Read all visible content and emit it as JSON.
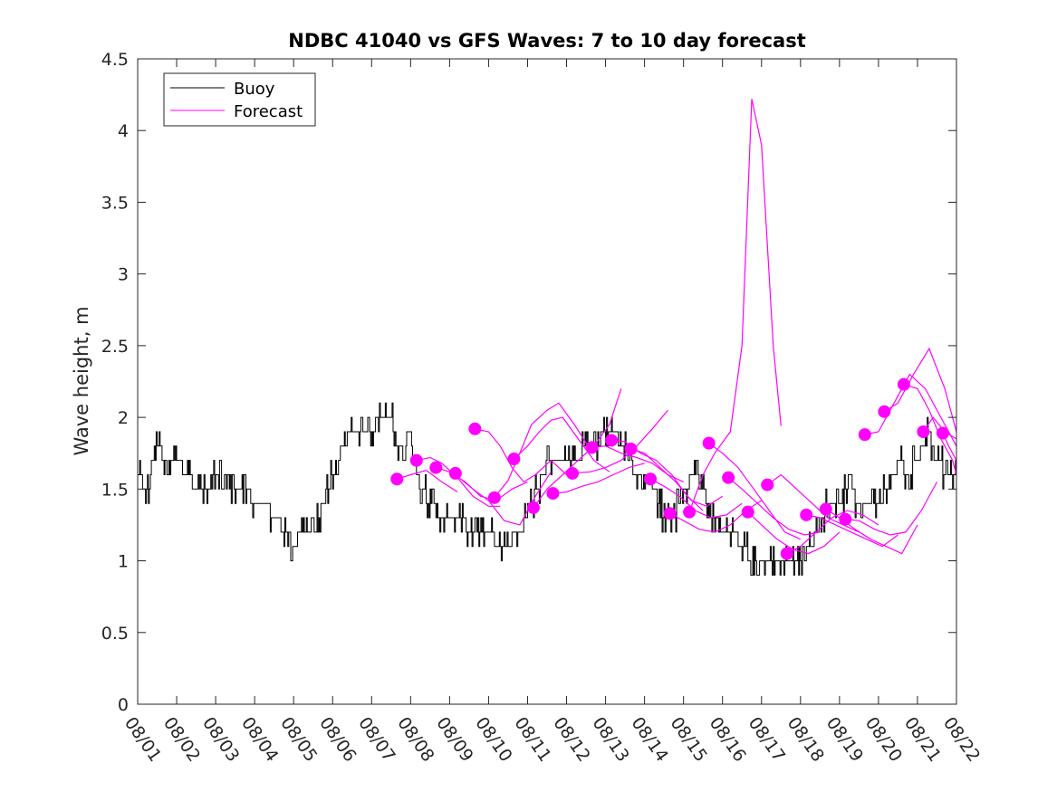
{
  "chart_data": {
    "type": "line",
    "title": "NDBC 41040 vs GFS Waves: 7 to 10 day forecast",
    "xlabel": "",
    "ylabel": "Wave height, m",
    "xlim": [
      0,
      21
    ],
    "ylim": [
      0,
      4.5
    ],
    "x_tick_labels": [
      "08/01",
      "08/02",
      "08/03",
      "08/04",
      "08/05",
      "08/06",
      "08/07",
      "08/08",
      "08/09",
      "08/10",
      "08/11",
      "08/12",
      "08/13",
      "08/14",
      "08/15",
      "08/16",
      "08/17",
      "08/18",
      "08/19",
      "08/20",
      "08/21",
      "08/22"
    ],
    "y_tick_labels": [
      "0",
      "0.5",
      "1",
      "1.5",
      "2",
      "2.5",
      "3",
      "3.5",
      "4",
      "4.5"
    ],
    "y_ticks": [
      0,
      0.5,
      1,
      1.5,
      2,
      2.5,
      3,
      3.5,
      4,
      4.5
    ],
    "legend": {
      "position": "top-left",
      "entries": [
        "Buoy",
        "Forecast"
      ]
    },
    "colors": {
      "buoy": "#000000",
      "forecast": "#ff00ff"
    },
    "series": [
      {
        "name": "Buoy",
        "x": [
          0.0,
          0.25,
          0.5,
          0.75,
          1.0,
          1.25,
          1.5,
          1.75,
          2.0,
          2.25,
          2.5,
          2.75,
          3.0,
          3.25,
          3.5,
          3.75,
          4.0,
          4.25,
          4.5,
          4.75,
          5.0,
          5.25,
          5.5,
          5.75,
          6.0,
          6.25,
          6.5,
          6.75,
          7.0,
          7.25,
          7.5,
          7.75,
          8.0,
          8.25,
          8.5,
          8.75,
          9.0,
          9.25,
          9.5,
          9.75,
          10.0,
          10.25,
          10.5,
          10.75,
          11.0,
          11.25,
          11.5,
          11.75,
          12.0,
          12.25,
          12.5,
          12.75,
          13.0,
          13.25,
          13.5,
          13.75,
          14.0,
          14.25,
          14.5,
          14.75,
          15.0,
          15.25,
          15.5,
          15.75,
          16.0,
          16.25,
          16.5,
          16.75,
          17.0,
          17.25,
          17.5,
          17.75,
          18.0,
          18.25,
          18.5,
          18.75,
          19.0,
          19.25,
          19.5,
          19.75,
          20.0,
          20.25,
          20.5,
          20.75,
          21.0
        ],
        "values": [
          1.6,
          1.5,
          1.8,
          1.7,
          1.7,
          1.6,
          1.5,
          1.5,
          1.6,
          1.5,
          1.5,
          1.5,
          1.4,
          1.4,
          1.3,
          1.2,
          1.1,
          1.2,
          1.2,
          1.4,
          1.6,
          1.8,
          1.9,
          1.9,
          1.9,
          2.0,
          2.0,
          1.7,
          1.8,
          1.5,
          1.4,
          1.3,
          1.3,
          1.3,
          1.2,
          1.2,
          1.2,
          1.1,
          1.1,
          1.2,
          1.3,
          1.5,
          1.7,
          1.7,
          1.7,
          1.7,
          1.8,
          1.8,
          1.9,
          1.9,
          1.8,
          1.6,
          1.6,
          1.5,
          1.3,
          1.3,
          1.5,
          1.6,
          1.5,
          1.3,
          1.2,
          1.2,
          1.1,
          1.0,
          1.0,
          1.0,
          1.0,
          1.0,
          1.0,
          1.1,
          1.3,
          1.4,
          1.4,
          1.5,
          1.4,
          1.4,
          1.4,
          1.5,
          1.7,
          1.6,
          1.7,
          1.9,
          1.7,
          1.6,
          1.6
        ]
      },
      {
        "name": "Forecast",
        "runs": [
          {
            "x": [
              6.65,
              7.0,
              7.4,
              7.8,
              8.2
            ],
            "values": [
              1.57,
              1.6,
              1.63,
              1.55,
              1.48
            ]
          },
          {
            "x": [
              7.15,
              7.5,
              7.8,
              8.2,
              8.6,
              9.0,
              9.3
            ],
            "values": [
              1.7,
              1.72,
              1.68,
              1.58,
              1.45,
              1.38,
              1.38
            ]
          },
          {
            "x": [
              7.65,
              8.0,
              8.4,
              8.8,
              9.2,
              9.6,
              10.0
            ],
            "values": [
              1.65,
              1.62,
              1.55,
              1.45,
              1.42,
              1.5,
              1.55
            ]
          },
          {
            "x": [
              8.15,
              8.6,
              9.0,
              9.4,
              9.8,
              10.2,
              10.6
            ],
            "values": [
              1.6,
              1.5,
              1.42,
              1.28,
              1.25,
              1.45,
              1.62
            ]
          },
          {
            "x": [
              8.65,
              9.0,
              9.3,
              9.6,
              9.9,
              10.2,
              10.6,
              11.0
            ],
            "values": [
              1.92,
              1.9,
              1.8,
              1.65,
              1.55,
              1.6,
              1.7,
              1.6
            ]
          },
          {
            "x": [
              9.15,
              9.5,
              9.8,
              10.1,
              10.5,
              10.8,
              11.2,
              11.6
            ],
            "values": [
              1.44,
              1.56,
              1.75,
              1.95,
              2.05,
              2.1,
              1.95,
              1.78
            ]
          },
          {
            "x": [
              9.65,
              10.0,
              10.3,
              10.6,
              10.9,
              11.3,
              11.7,
              12.1
            ],
            "values": [
              1.71,
              1.8,
              1.9,
              1.98,
              2.0,
              1.85,
              1.7,
              1.62
            ]
          },
          {
            "x": [
              10.15,
              10.5,
              10.9,
              11.3,
              11.7,
              12.1,
              12.4
            ],
            "values": [
              1.37,
              1.5,
              1.6,
              1.7,
              1.8,
              1.95,
              2.2
            ]
          },
          {
            "x": [
              10.65,
              11.0,
              11.4,
              11.8,
              12.2,
              12.6,
              13.0
            ],
            "values": [
              1.47,
              1.48,
              1.52,
              1.55,
              1.6,
              1.65,
              1.68
            ]
          },
          {
            "x": [
              11.15,
              11.6,
              12.0,
              12.4,
              12.8,
              13.2,
              13.6
            ],
            "values": [
              1.61,
              1.62,
              1.65,
              1.7,
              1.8,
              1.92,
              2.05
            ]
          },
          {
            "x": [
              11.65,
              12.0,
              12.4,
              12.8,
              13.2,
              13.6,
              14.0
            ],
            "values": [
              1.79,
              1.8,
              1.75,
              1.72,
              1.68,
              1.6,
              1.55
            ]
          },
          {
            "x": [
              12.15,
              12.5,
              12.9,
              13.3,
              13.7,
              14.1,
              14.5
            ],
            "values": [
              1.84,
              1.83,
              1.75,
              1.7,
              1.6,
              1.45,
              1.35
            ]
          },
          {
            "x": [
              12.65,
              13.0,
              13.4,
              13.8,
              14.2,
              14.6,
              15.0
            ],
            "values": [
              1.78,
              1.75,
              1.65,
              1.55,
              1.42,
              1.38,
              1.45
            ]
          },
          {
            "x": [
              13.15,
              13.5,
              13.9,
              14.3,
              14.7,
              15.1,
              15.5
            ],
            "values": [
              1.57,
              1.52,
              1.45,
              1.35,
              1.3,
              1.32,
              1.4
            ]
          },
          {
            "x": [
              13.65,
              14.0,
              14.4,
              14.8,
              15.2,
              15.6,
              16.0
            ],
            "values": [
              1.33,
              1.28,
              1.22,
              1.2,
              1.25,
              1.35,
              1.42
            ]
          },
          {
            "x": [
              14.15,
              14.5,
              14.8,
              15.2,
              15.5,
              15.75,
              16.0,
              16.3,
              16.5
            ],
            "values": [
              1.34,
              1.6,
              1.75,
              1.9,
              2.5,
              4.22,
              3.9,
              2.5,
              1.94
            ]
          },
          {
            "x": [
              14.65,
              15.0,
              15.4,
              15.8,
              16.2,
              16.6,
              17.0
            ],
            "values": [
              1.82,
              1.75,
              1.65,
              1.5,
              1.35,
              1.2,
              1.15
            ]
          },
          {
            "x": [
              15.15,
              15.5,
              15.9,
              16.3,
              16.7,
              17.1,
              17.5
            ],
            "values": [
              1.58,
              1.5,
              1.4,
              1.3,
              1.22,
              1.18,
              1.2
            ]
          },
          {
            "x": [
              15.65,
              16.0,
              16.4,
              16.8,
              17.2,
              17.6,
              18.0
            ],
            "values": [
              1.34,
              1.25,
              1.15,
              1.08,
              1.05,
              1.1,
              1.2
            ]
          },
          {
            "x": [
              16.15,
              16.5,
              16.9,
              17.3,
              17.7,
              18.1,
              18.5
            ],
            "values": [
              1.53,
              1.6,
              1.5,
              1.4,
              1.3,
              1.25,
              1.2
            ]
          },
          {
            "x": [
              16.65,
              17.0,
              17.4,
              17.8,
              18.2,
              18.6,
              19.0
            ],
            "values": [
              1.05,
              1.1,
              1.2,
              1.3,
              1.35,
              1.32,
              1.25
            ]
          },
          {
            "x": [
              17.15,
              17.5,
              17.9,
              18.3,
              18.7,
              19.1,
              19.5
            ],
            "values": [
              1.32,
              1.3,
              1.25,
              1.2,
              1.15,
              1.1,
              1.18
            ]
          },
          {
            "x": [
              17.65,
              18.0,
              18.4,
              18.8,
              19.2,
              19.6,
              20.0
            ],
            "values": [
              1.36,
              1.3,
              1.22,
              1.15,
              1.1,
              1.05,
              1.25
            ]
          },
          {
            "x": [
              18.15,
              18.5,
              18.9,
              19.3,
              19.7,
              20.1,
              20.5
            ],
            "values": [
              1.29,
              1.28,
              1.22,
              1.18,
              1.2,
              1.35,
              1.55
            ]
          },
          {
            "x": [
              18.65,
              19.0,
              19.4,
              19.8,
              20.2,
              20.6,
              21.0
            ],
            "values": [
              1.88,
              1.9,
              2.1,
              2.3,
              2.2,
              2.0,
              1.8
            ]
          },
          {
            "x": [
              19.15,
              19.5,
              19.9,
              20.3,
              20.7,
              21.0
            ],
            "values": [
              2.04,
              2.1,
              2.3,
              2.48,
              2.2,
              1.9
            ]
          },
          {
            "x": [
              19.65,
              20.0,
              20.3,
              20.6,
              20.9,
              21.0
            ],
            "values": [
              2.23,
              2.2,
              2.05,
              1.85,
              1.7,
              1.6
            ]
          },
          {
            "x": [
              20.15,
              20.4,
              20.7,
              21.0
            ],
            "values": [
              1.9,
              2.0,
              1.9,
              1.85
            ]
          },
          {
            "x": [
              20.65,
              20.8,
              21.0
            ],
            "values": [
              1.89,
              1.8,
              1.7
            ]
          }
        ],
        "markers": {
          "x": [
            6.65,
            7.15,
            7.65,
            8.15,
            8.65,
            9.15,
            9.65,
            10.15,
            10.65,
            11.15,
            11.65,
            12.15,
            12.65,
            13.15,
            13.65,
            14.15,
            14.65,
            15.15,
            15.65,
            16.15,
            16.65,
            17.15,
            17.65,
            18.15,
            18.65,
            19.15,
            19.65,
            20.15,
            20.65
          ],
          "values": [
            1.57,
            1.7,
            1.65,
            1.61,
            1.92,
            1.44,
            1.71,
            1.37,
            1.47,
            1.61,
            1.79,
            1.84,
            1.78,
            1.57,
            1.33,
            1.34,
            1.82,
            1.58,
            1.34,
            1.53,
            1.05,
            1.32,
            1.36,
            1.29,
            1.88,
            2.04,
            2.23,
            1.9,
            1.89
          ]
        }
      }
    ]
  }
}
